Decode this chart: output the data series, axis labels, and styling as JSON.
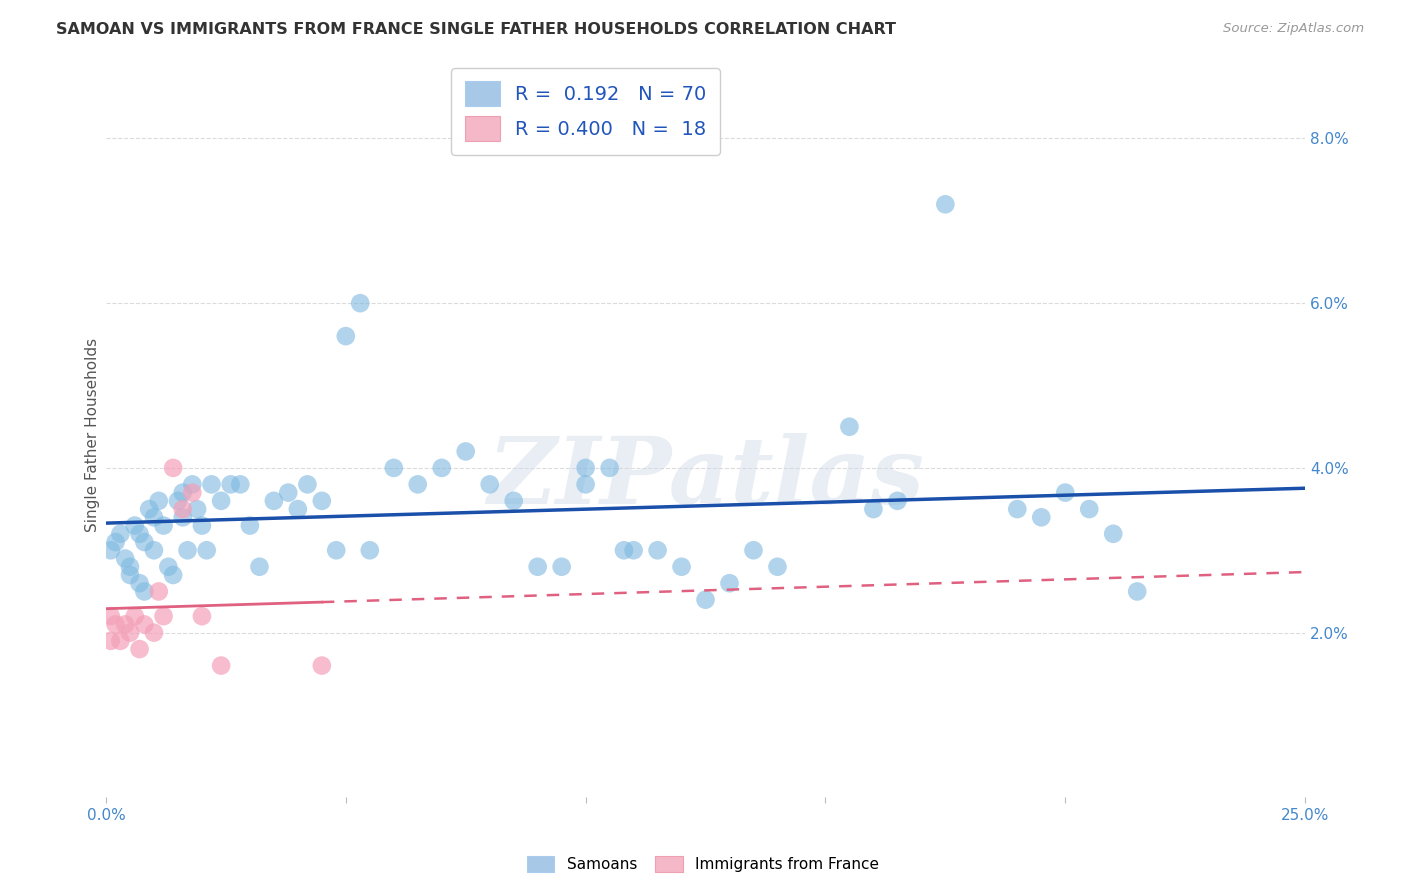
{
  "title": "SAMOAN VS IMMIGRANTS FROM FRANCE SINGLE FATHER HOUSEHOLDS CORRELATION CHART",
  "source": "Source: ZipAtlas.com",
  "ylabel": "Single Father Households",
  "xlim": [
    0.0,
    0.25
  ],
  "ylim": [
    0.0,
    0.088
  ],
  "ytick_vals": [
    0.02,
    0.04,
    0.06,
    0.08
  ],
  "ytick_labels": [
    "2.0%",
    "4.0%",
    "6.0%",
    "8.0%"
  ],
  "xtick_vals": [
    0.0,
    0.05,
    0.1,
    0.15,
    0.2,
    0.25
  ],
  "xtick_labels": [
    "0.0%",
    "",
    "",
    "",
    "",
    "25.0%"
  ],
  "samoan_color": "#7db8e0",
  "france_color": "#f4a0b8",
  "trendline_samoan_color": "#1a4faa",
  "trendline_france_color": "#e06080",
  "legend_blue_color": "#a8c8e8",
  "legend_pink_color": "#f4b8c8",
  "watermark": "ZIPatlas",
  "samoan_R": "0.192",
  "samoan_N": "70",
  "france_R": "0.400",
  "france_N": "18",
  "samoan_x": [
    0.001,
    0.002,
    0.003,
    0.004,
    0.005,
    0.005,
    0.006,
    0.007,
    0.007,
    0.008,
    0.008,
    0.009,
    0.01,
    0.01,
    0.011,
    0.012,
    0.013,
    0.014,
    0.015,
    0.016,
    0.016,
    0.017,
    0.018,
    0.019,
    0.02,
    0.021,
    0.022,
    0.024,
    0.026,
    0.028,
    0.03,
    0.032,
    0.035,
    0.038,
    0.04,
    0.042,
    0.045,
    0.048,
    0.05,
    0.053,
    0.055,
    0.06,
    0.065,
    0.07,
    0.075,
    0.08,
    0.085,
    0.09,
    0.095,
    0.1,
    0.1,
    0.105,
    0.108,
    0.11,
    0.115,
    0.12,
    0.125,
    0.13,
    0.135,
    0.14,
    0.155,
    0.16,
    0.165,
    0.175,
    0.19,
    0.195,
    0.2,
    0.205,
    0.21,
    0.215
  ],
  "samoan_y": [
    0.03,
    0.031,
    0.032,
    0.029,
    0.028,
    0.027,
    0.033,
    0.026,
    0.032,
    0.025,
    0.031,
    0.035,
    0.034,
    0.03,
    0.036,
    0.033,
    0.028,
    0.027,
    0.036,
    0.034,
    0.037,
    0.03,
    0.038,
    0.035,
    0.033,
    0.03,
    0.038,
    0.036,
    0.038,
    0.038,
    0.033,
    0.028,
    0.036,
    0.037,
    0.035,
    0.038,
    0.036,
    0.03,
    0.056,
    0.06,
    0.03,
    0.04,
    0.038,
    0.04,
    0.042,
    0.038,
    0.036,
    0.028,
    0.028,
    0.038,
    0.04,
    0.04,
    0.03,
    0.03,
    0.03,
    0.028,
    0.024,
    0.026,
    0.03,
    0.028,
    0.045,
    0.035,
    0.036,
    0.072,
    0.035,
    0.034,
    0.037,
    0.035,
    0.032,
    0.025
  ],
  "france_x": [
    0.001,
    0.001,
    0.002,
    0.003,
    0.004,
    0.005,
    0.006,
    0.007,
    0.008,
    0.01,
    0.011,
    0.012,
    0.014,
    0.016,
    0.018,
    0.02,
    0.024,
    0.045
  ],
  "france_y": [
    0.019,
    0.022,
    0.021,
    0.019,
    0.021,
    0.02,
    0.022,
    0.018,
    0.021,
    0.02,
    0.025,
    0.022,
    0.04,
    0.035,
    0.037,
    0.022,
    0.016,
    0.016
  ]
}
